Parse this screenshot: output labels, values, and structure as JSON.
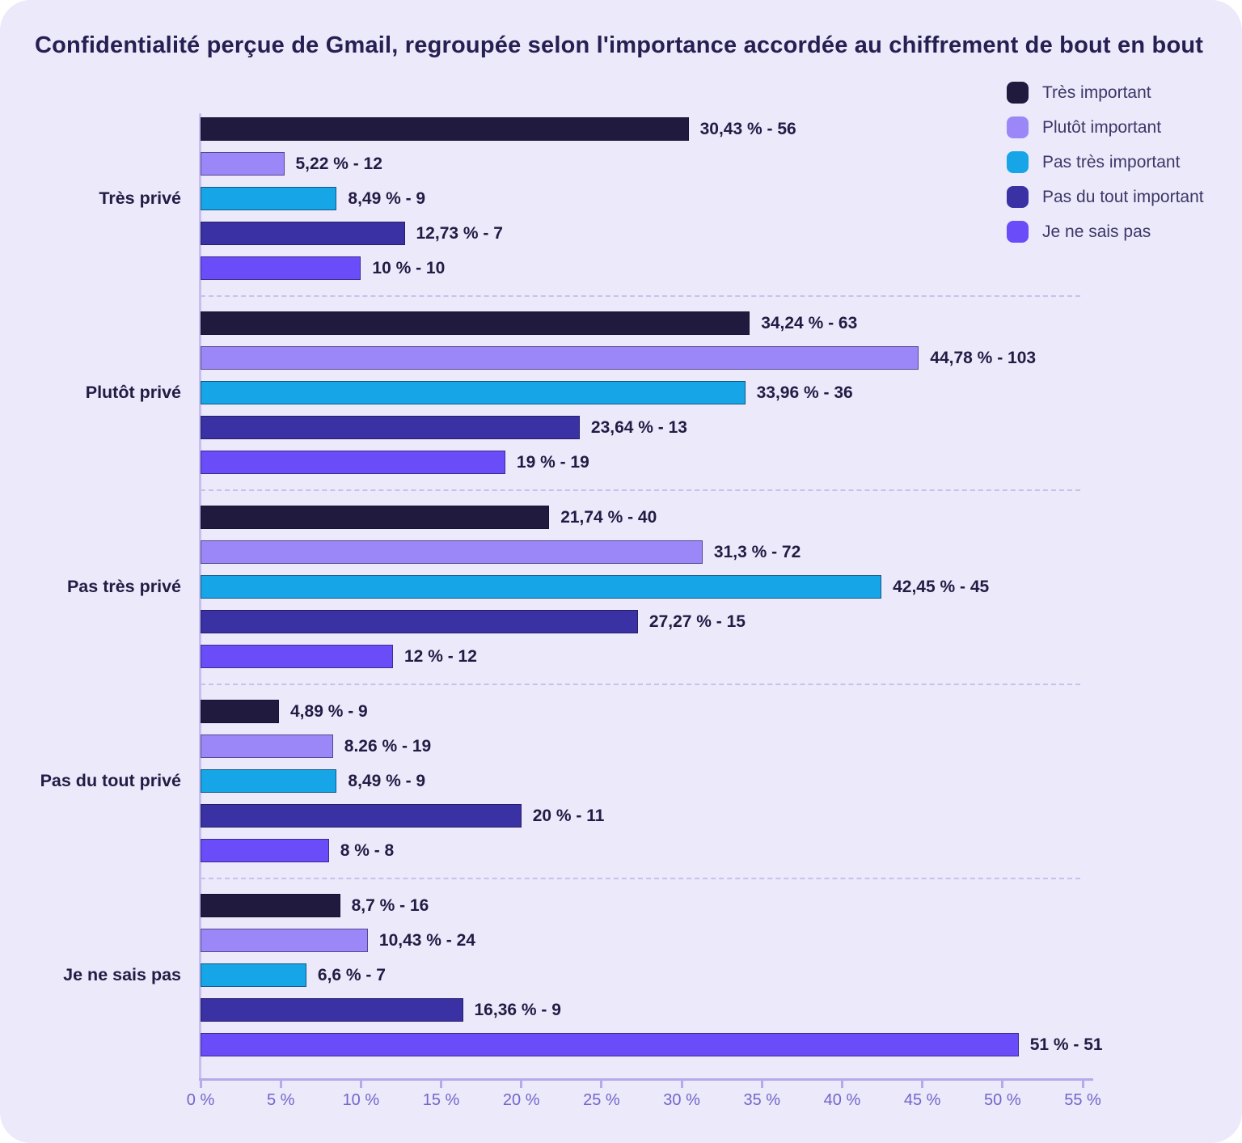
{
  "title": "Confidentialité perçue de Gmail, regroupée selon l'importance accordée au chiffrement de bout en bout",
  "colors": {
    "background": "#ebe9fa",
    "title_text": "#262052",
    "label_text": "#221c44",
    "legend_text": "#3d3768",
    "axis_line": "#b5abea",
    "y_axis_line": "#c7bff2",
    "tick_label_text": "#7165cb",
    "separator": "#c9c0f0"
  },
  "chart_data": {
    "type": "bar",
    "orientation": "horizontal",
    "title": "Confidentialité perçue de Gmail, regroupée selon l'importance accordée au chiffrement de bout en bout",
    "xlabel": "",
    "ylabel": "",
    "xlim": [
      0,
      55
    ],
    "x_unit": "%",
    "x_tick_labels": [
      "0 %",
      "5 %",
      "10 %",
      "15 %",
      "20 %",
      "25 %",
      "30 %",
      "35 %",
      "40 %",
      "45 %",
      "50 %",
      "55 %"
    ],
    "grid": "dashed-separators-between-groups",
    "legend_position": "top-right",
    "categories": [
      "Très privé",
      "Plutôt privé",
      "Pas très privé",
      "Pas du tout privé",
      "Je ne sais pas"
    ],
    "series": [
      {
        "name": "Très important",
        "color": "#1f1a3e",
        "values": [
          30.43,
          34.24,
          21.74,
          4.89,
          8.7
        ],
        "counts": [
          56,
          63,
          40,
          9,
          16
        ],
        "labels": [
          "30,43 % - 56",
          "34,24 % - 63",
          "21,74 % - 40",
          "4,89 % - 9",
          "8,7 % - 16"
        ]
      },
      {
        "name": "Plutôt important",
        "color": "#9b87f7",
        "values": [
          5.22,
          44.78,
          31.3,
          8.26,
          10.43
        ],
        "counts": [
          12,
          103,
          72,
          19,
          24
        ],
        "labels": [
          "5,22 % - 12",
          "44,78 % - 103",
          "31,3 % - 72",
          "8.26 % - 19",
          "10,43 % - 24"
        ]
      },
      {
        "name": "Pas très important",
        "color": "#16a5e6",
        "values": [
          8.49,
          33.96,
          42.45,
          8.49,
          6.6
        ],
        "counts": [
          9,
          36,
          45,
          9,
          7
        ],
        "labels": [
          "8,49 % - 9",
          "33,96 % - 36",
          "42,45 % - 45",
          "8,49 % - 9",
          "6,6 % - 7"
        ]
      },
      {
        "name": "Pas du tout important",
        "color": "#3a31a5",
        "values": [
          12.73,
          23.64,
          27.27,
          20,
          16.36
        ],
        "counts": [
          7,
          13,
          15,
          11,
          9
        ],
        "labels": [
          "12,73 % - 7",
          "23,64 % - 13",
          "27,27 % - 15",
          "20 % - 11",
          "16,36 % - 9"
        ]
      },
      {
        "name": "Je ne sais pas",
        "color": "#6a4cf8",
        "values": [
          10,
          19,
          12,
          8,
          51
        ],
        "counts": [
          10,
          19,
          12,
          8,
          51
        ],
        "labels": [
          "10 % - 10",
          "19 % - 19",
          "12 % - 12",
          "8 % - 8",
          "51 % - 51"
        ]
      }
    ]
  }
}
